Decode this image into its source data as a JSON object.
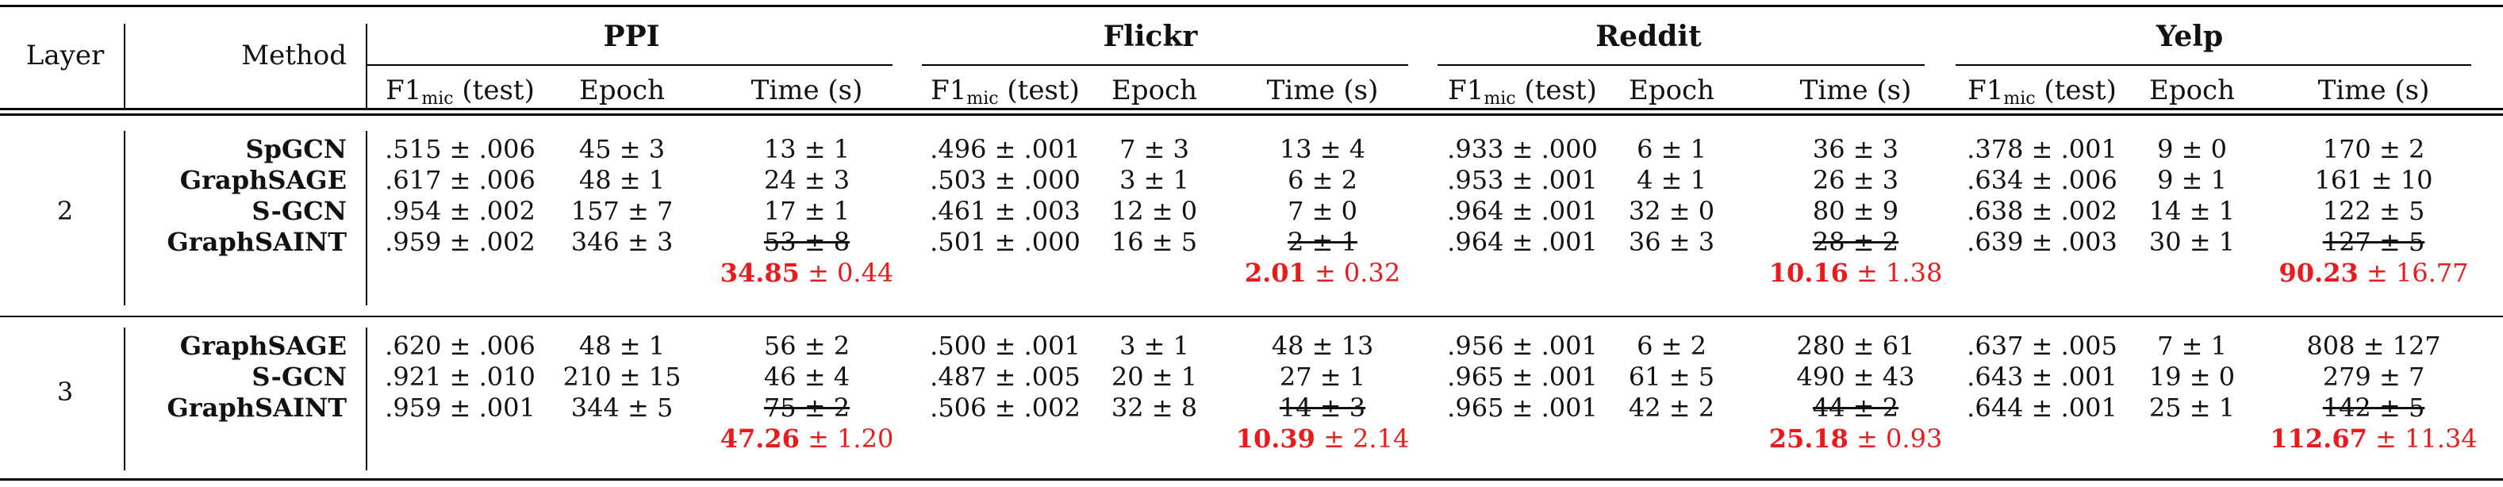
{
  "header": {
    "layer": "Layer",
    "method": "Method",
    "datasets": [
      "PPI",
      "Flickr",
      "Reddit",
      "Yelp"
    ],
    "sub_f1_main": "F1",
    "sub_f1_sub": "mic",
    "sub_f1_tail": " (test)",
    "sub_epoch": "Epoch",
    "sub_time": "Time (s)"
  },
  "blocks": [
    {
      "layer": "2",
      "rows": [
        {
          "method": "SpGCN",
          "cells": [
            ".515 ± .006",
            "45 ± 3",
            "13 ± 1",
            ".496 ± .001",
            "7 ± 3",
            "13 ± 4",
            ".933 ± .000",
            "6 ± 1",
            "36 ± 3",
            ".378 ± .001",
            "9 ± 0",
            "170 ± 2"
          ]
        },
        {
          "method": "GraphSAGE",
          "cells": [
            ".617 ± .006",
            "48 ± 1",
            "24 ± 3",
            ".503 ± .000",
            "3 ± 1",
            "6 ± 2",
            ".953 ± .001",
            "4 ± 1",
            "26 ± 3",
            ".634 ± .006",
            "9 ± 1",
            "161 ± 10"
          ]
        },
        {
          "method": "S-GCN",
          "cells": [
            ".954 ± .002",
            "157 ± 7",
            "17 ± 1",
            ".461 ± .003",
            "12 ± 0",
            "7 ± 0",
            ".964 ± .001",
            "32 ± 0",
            "80 ± 9",
            ".638 ± .002",
            "14 ± 1",
            "122 ± 5"
          ]
        },
        {
          "method": "GraphSAINT",
          "cells": [
            ".959 ± .002",
            "346 ± 3",
            "53 ± 8",
            ".501 ± .000",
            "16 ± 5",
            "2 ± 1",
            ".964 ± .001",
            "36 ± 3",
            "28 ± 2",
            ".639 ± .003",
            "30 ± 1",
            "127 ± 5"
          ]
        }
      ],
      "extra": [
        {
          "bold": "34.85",
          "rest": " ± 0.44"
        },
        {
          "bold": "2.01",
          "rest": " ± 0.32"
        },
        {
          "bold": "10.16",
          "rest": " ± 1.38"
        },
        {
          "bold": "90.23",
          "rest": " ± 16.77"
        }
      ]
    },
    {
      "layer": "3",
      "rows": [
        {
          "method": "GraphSAGE",
          "cells": [
            ".620 ± .006",
            "48 ± 1",
            "56 ± 2",
            ".500 ± .001",
            "3 ± 1",
            "48 ± 13",
            ".956 ± .001",
            "6 ± 2",
            "280 ± 61",
            ".637 ± .005",
            "7 ± 1",
            "808 ± 127"
          ]
        },
        {
          "method": "S-GCN",
          "cells": [
            ".921 ± .010",
            "210 ± 15",
            "46 ± 4",
            ".487 ± .005",
            "20 ± 1",
            "27 ± 1",
            ".965 ± .001",
            "61 ± 5",
            "490 ± 43",
            ".643 ± .001",
            "19 ± 0",
            "279 ± 7"
          ]
        },
        {
          "method": "GraphSAINT",
          "cells": [
            ".959 ± .001",
            "344 ± 5",
            "75 ± 2",
            ".506 ± .002",
            "32 ± 8",
            "14 ± 3",
            ".965 ± .001",
            "42 ± 2",
            "44 ± 2",
            ".644 ± .001",
            "25 ± 1",
            "142 ± 5"
          ]
        }
      ],
      "extra": [
        {
          "bold": "47.26",
          "rest": " ± 1.20"
        },
        {
          "bold": "10.39",
          "rest": " ± 2.14"
        },
        {
          "bold": "25.18",
          "rest": " ± 0.93"
        },
        {
          "bold": "112.67",
          "rest": " ± 11.34"
        }
      ]
    }
  ],
  "colors": {
    "highlight": "#e81c1c",
    "rule": "#000000"
  }
}
